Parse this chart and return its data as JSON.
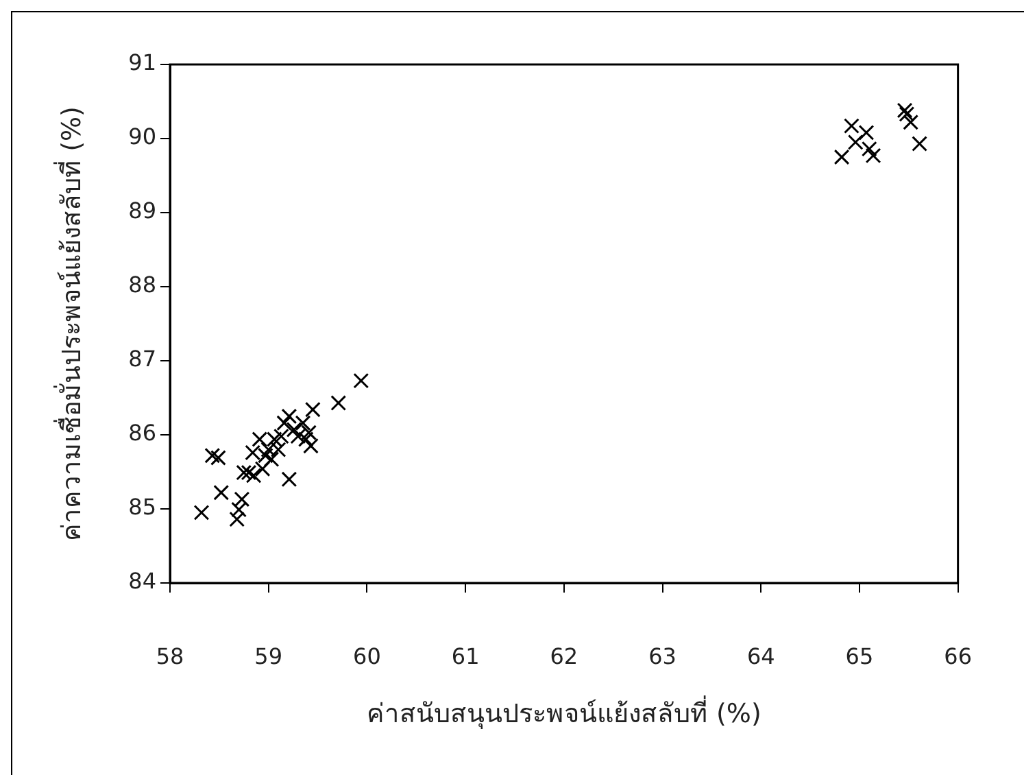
{
  "chart_data": {
    "type": "scatter",
    "xlabel": "ค่าสนับสนุนประพจน์แย้งสลับที่ (%)",
    "ylabel": "ค่าความเชื่อมั่นประพจน์แย้งสลับที่ (%)",
    "series": [
      {
        "color": "#000000",
        "x": [
          58.32,
          58.43,
          58.49,
          58.52,
          58.68,
          58.7,
          58.73,
          58.75,
          58.8,
          58.84,
          58.85,
          58.91,
          58.94,
          58.97,
          59.0,
          59.03,
          59.06,
          59.1,
          59.13,
          59.16,
          59.21,
          59.21,
          59.26,
          59.3,
          59.35,
          59.38,
          59.41,
          59.43,
          59.45,
          59.71,
          59.94,
          64.82,
          64.92,
          64.96,
          65.07,
          65.1,
          65.14,
          65.46,
          65.48,
          65.52,
          65.61
        ],
        "values": [
          84.95,
          85.72,
          85.69,
          85.22,
          84.86,
          84.99,
          85.13,
          85.49,
          85.49,
          85.76,
          85.45,
          85.94,
          85.54,
          85.72,
          85.8,
          85.67,
          85.94,
          85.8,
          85.98,
          86.16,
          86.25,
          85.4,
          86.07,
          85.98,
          86.16,
          85.94,
          86.03,
          85.85,
          86.34,
          86.43,
          86.73,
          89.75,
          90.17,
          89.95,
          90.08,
          89.86,
          89.77,
          90.38,
          90.33,
          90.22,
          89.93
        ]
      }
    ],
    "xlim": [
      58,
      66
    ],
    "xticks": [
      58,
      59,
      60,
      61,
      62,
      63,
      64,
      65,
      66
    ],
    "ylim": [
      84,
      91
    ],
    "yticks": [
      84,
      85,
      86,
      87,
      88,
      89,
      90,
      91
    ],
    "grid": false,
    "legend": false,
    "marker": "cross"
  }
}
